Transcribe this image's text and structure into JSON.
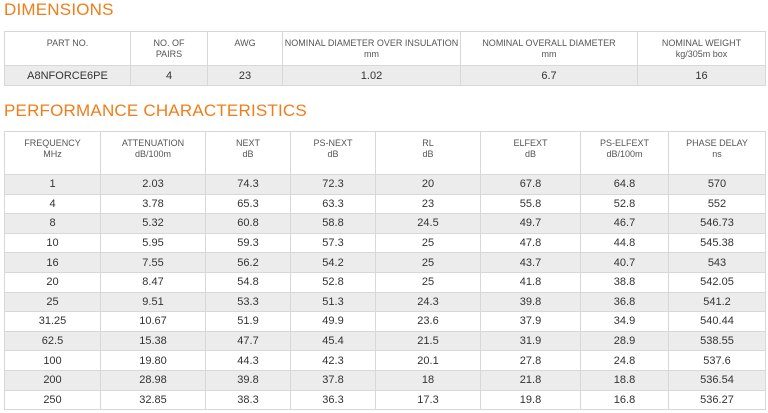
{
  "dimensions": {
    "title": "DIMENSIONS",
    "headers": [
      {
        "name": "PART NO."
      },
      {
        "name": "NO. OF",
        "unit": "PAIRS"
      },
      {
        "name": "AWG"
      },
      {
        "name": "NOMINAL DIAMETER OVER INSULATION",
        "unit": "mm"
      },
      {
        "name": "NOMINAL OVERALL DIAMETER",
        "unit": "mm"
      },
      {
        "name": "NOMINAL WEIGHT",
        "unit": "kg/305m box"
      }
    ],
    "rows": [
      [
        "A8NFORCE6PE",
        "4",
        "23",
        "1.02",
        "6.7",
        "16"
      ]
    ]
  },
  "performance": {
    "title": "PERFORMANCE CHARACTERISTICS",
    "headers": [
      {
        "name": "FREQUENCY",
        "unit": "MHz"
      },
      {
        "name": "ATTENUATION",
        "unit": "dB/100m"
      },
      {
        "name": "NEXT",
        "unit": "dB"
      },
      {
        "name": "PS-NEXT",
        "unit": "dB"
      },
      {
        "name": "RL",
        "unit": "dB"
      },
      {
        "name": "ELFEXT",
        "unit": "dB"
      },
      {
        "name": "PS-ELFEXT",
        "unit": "dB/100m"
      },
      {
        "name": "PHASE DELAY",
        "unit": "ns"
      }
    ],
    "rows": [
      [
        "1",
        "2.03",
        "74.3",
        "72.3",
        "20",
        "67.8",
        "64.8",
        "570"
      ],
      [
        "4",
        "3.78",
        "65.3",
        "63.3",
        "23",
        "55.8",
        "52.8",
        "552"
      ],
      [
        "8",
        "5.32",
        "60.8",
        "58.8",
        "24.5",
        "49.7",
        "46.7",
        "546.73"
      ],
      [
        "10",
        "5.95",
        "59.3",
        "57.3",
        "25",
        "47.8",
        "44.8",
        "545.38"
      ],
      [
        "16",
        "7.55",
        "56.2",
        "54.2",
        "25",
        "43.7",
        "40.7",
        "543"
      ],
      [
        "20",
        "8.47",
        "54.8",
        "52.8",
        "25",
        "41.8",
        "38.8",
        "542.05"
      ],
      [
        "25",
        "9.51",
        "53.3",
        "51.3",
        "24.3",
        "39.8",
        "36.8",
        "541.2"
      ],
      [
        "31.25",
        "10.67",
        "51.9",
        "49.9",
        "23.6",
        "37.9",
        "34.9",
        "540.44"
      ],
      [
        "62.5",
        "15.38",
        "47.7",
        "45.4",
        "21.5",
        "31.9",
        "28.9",
        "538.55"
      ],
      [
        "100",
        "19.80",
        "44.3",
        "42.3",
        "20.1",
        "27.8",
        "24.8",
        "537.6"
      ],
      [
        "200",
        "28.98",
        "39.8",
        "37.8",
        "18",
        "21.8",
        "18.8",
        "536.54"
      ],
      [
        "250",
        "32.85",
        "38.3",
        "36.3",
        "17.3",
        "19.8",
        "16.8",
        "536.27"
      ]
    ]
  }
}
